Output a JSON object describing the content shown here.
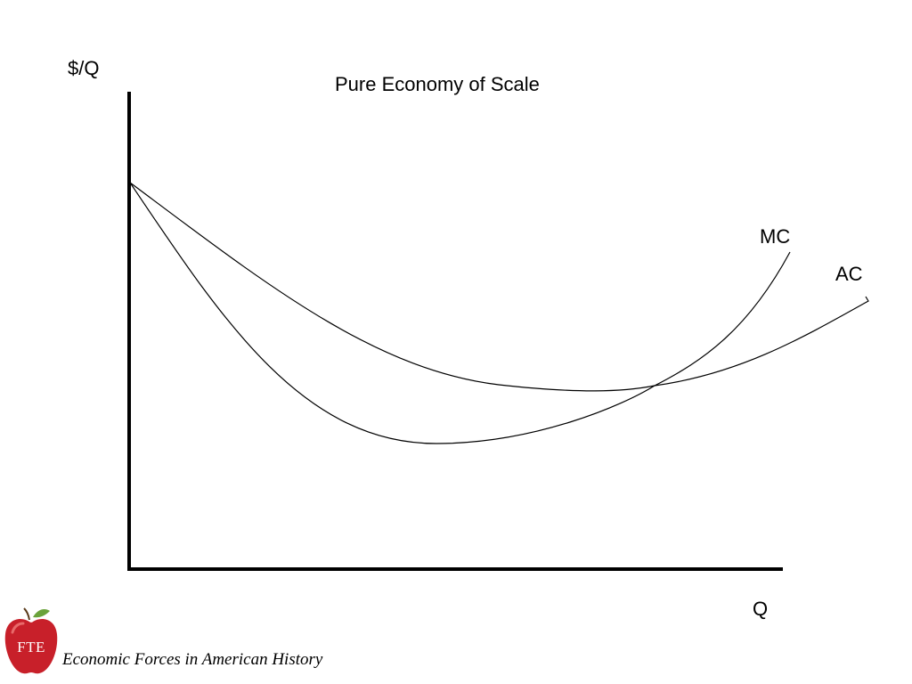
{
  "diagram": {
    "title": "Pure Economy of Scale",
    "y_axis_label": "$/Q",
    "x_axis_label": "Q",
    "curves": [
      {
        "name": "MC",
        "shape": "U-shaped, steep rise after crossing AC at its minimum"
      },
      {
        "name": "AC",
        "shape": "U-shaped, flatter, minimum where MC crosses"
      }
    ]
  },
  "footer": {
    "logo_text": "FTE",
    "logo_icon": "apple-icon",
    "logo_color": "#c8202a",
    "caption": "Economic Forces in American History"
  }
}
